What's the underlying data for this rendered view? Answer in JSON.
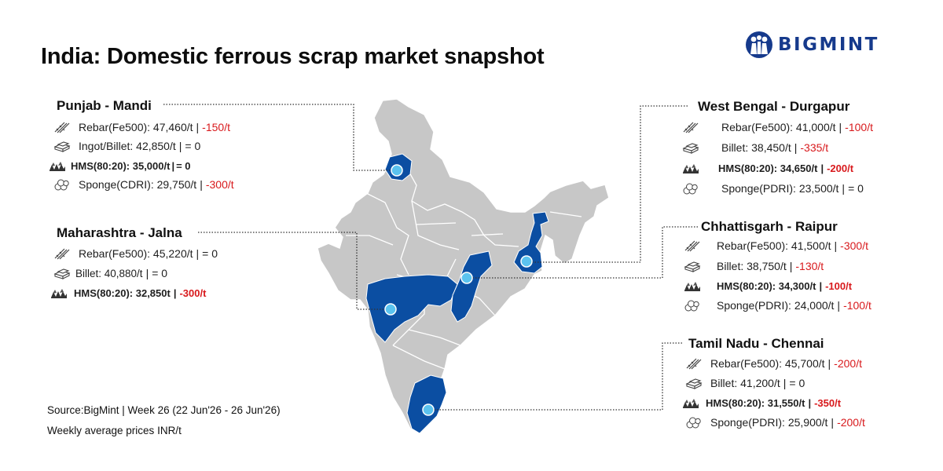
{
  "title": "India: Domestic ferrous scrap market snapshot",
  "brand": {
    "name": "BIGMINT",
    "color": "#163a8c"
  },
  "colors": {
    "highlight_state": "#0b4ea2",
    "other_state": "#c7c7c7",
    "marker": "#5bc3ef",
    "negative": "#d8191c"
  },
  "footer": {
    "source": "Source:BigMint | Week 26  (22 Jun'26 - 26 Jun'26)",
    "note": "Weekly average prices INR/t"
  },
  "regions": {
    "punjab": {
      "title": "Punjab - Mandi",
      "rows": [
        {
          "icon": "rebar-icon",
          "text": "Rebar(Fe500): 47,460/t",
          "change": "-150/t"
        },
        {
          "icon": "billet-icon",
          "text": "Ingot/Billet: 42,850/t",
          "change": "= 0"
        },
        {
          "icon": "hms-scrap-icon",
          "text": "HMS(80:20): 35,000/t",
          "change": "= 0"
        },
        {
          "icon": "sponge-iron-icon",
          "text": "Sponge(CDRI): 29,750/t",
          "change": "-300/t"
        }
      ]
    },
    "maharashtra": {
      "title": "Maharashtra - Jalna",
      "rows": [
        {
          "icon": "rebar-icon",
          "text": "Rebar(Fe500): 45,220/t",
          "change": "= 0"
        },
        {
          "icon": "billet-icon",
          "text": "Billet: 40,880/t",
          "change": "= 0"
        },
        {
          "icon": "hms-scrap-icon",
          "text": "HMS(80:20): 32,850t",
          "change": "-300/t"
        }
      ]
    },
    "west_bengal": {
      "title": "West Bengal - Durgapur",
      "rows": [
        {
          "icon": "rebar-icon",
          "text": "Rebar(Fe500): 41,000/t",
          "change": "-100/t"
        },
        {
          "icon": "billet-icon",
          "text": "Billet: 38,450/t",
          "change": "-335/t"
        },
        {
          "icon": "hms-scrap-icon",
          "text": "HMS(80:20): 34,650/t",
          "change": "-200/t"
        },
        {
          "icon": "sponge-iron-icon",
          "text": "Sponge(PDRI): 23,500/t",
          "change": "= 0"
        }
      ]
    },
    "chhattisgarh": {
      "title": "Chhattisgarh - Raipur",
      "rows": [
        {
          "icon": "rebar-icon",
          "text": "Rebar(Fe500): 41,500/t",
          "change": "-300/t"
        },
        {
          "icon": "billet-icon",
          "text": "Billet: 38,750/t",
          "change": "-130/t"
        },
        {
          "icon": "hms-scrap-icon",
          "text": "HMS(80:20): 34,300/t",
          "change": "-100/t"
        },
        {
          "icon": "sponge-iron-icon",
          "text": "Sponge(PDRI): 24,000/t",
          "change": "-100/t"
        }
      ]
    },
    "tamil_nadu": {
      "title": "Tamil Nadu - Chennai",
      "rows": [
        {
          "icon": "rebar-icon",
          "text": "Rebar(Fe500): 45,700/t",
          "change": "-200/t"
        },
        {
          "icon": "billet-icon",
          "text": "Billet: 41,200/t",
          "change": "= 0"
        },
        {
          "icon": "hms-scrap-icon",
          "text": "HMS(80:20): 31,550/t",
          "change": "-350/t"
        },
        {
          "icon": "sponge-iron-icon",
          "text": "Sponge(PDRI): 25,900/t",
          "change": "-200/t"
        }
      ]
    }
  }
}
